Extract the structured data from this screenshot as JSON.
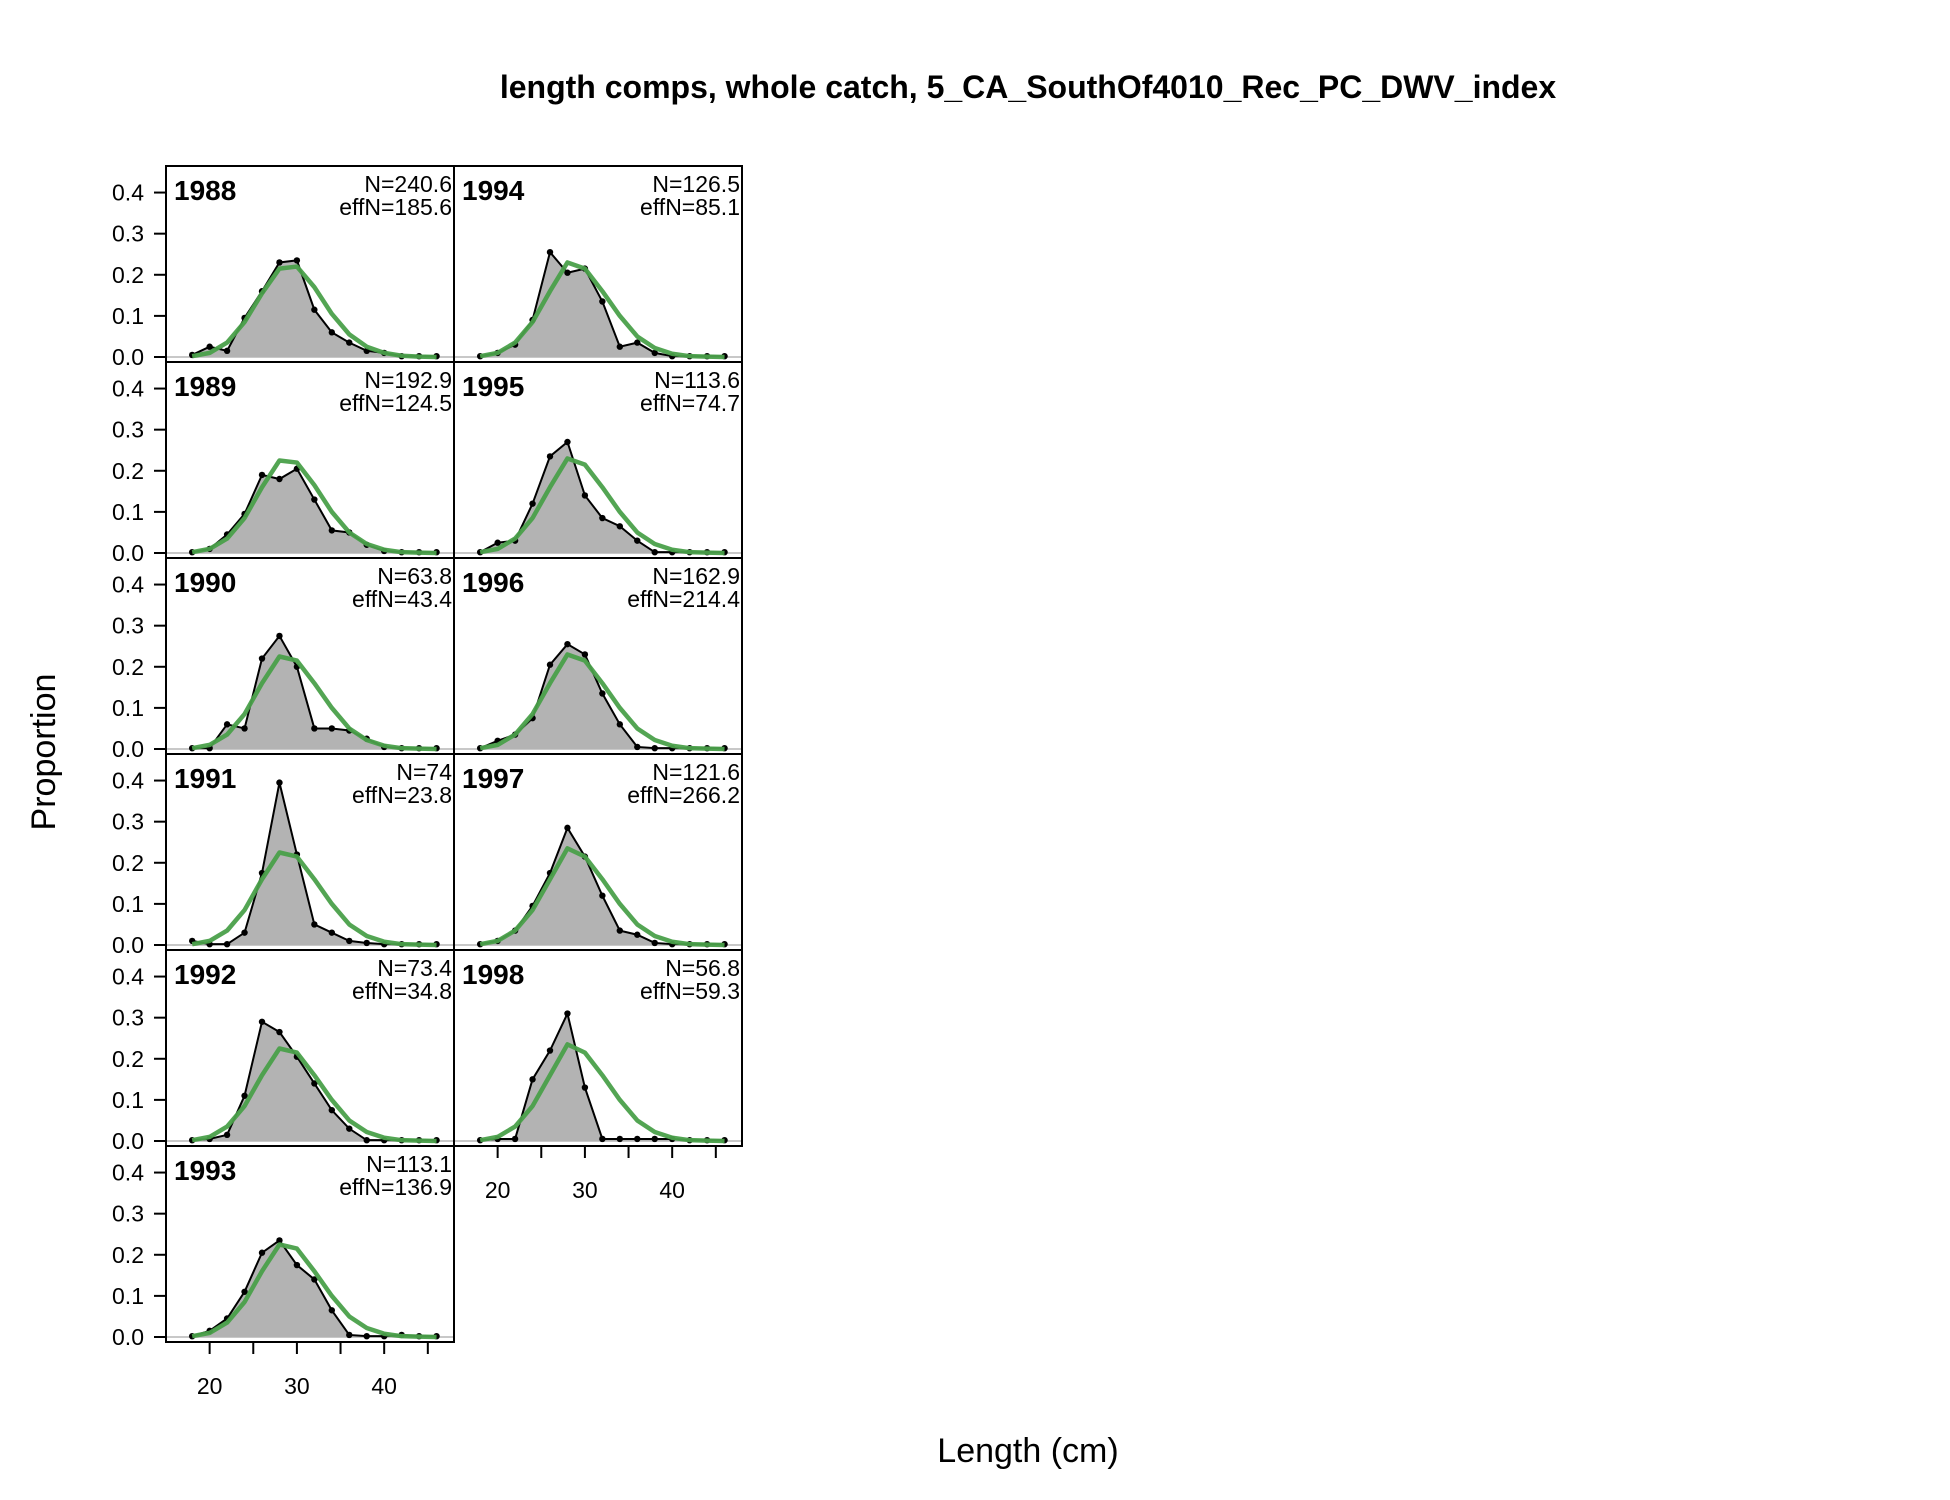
{
  "chart_data": {
    "type": "area",
    "title": "length comps, whole catch, 5_CA_SouthOf4010_Rec_PC_DWV_index",
    "xlabel": "Length (cm)",
    "ylabel": "Proportion",
    "xlim": [
      15,
      48
    ],
    "ylim": [
      0,
      0.45
    ],
    "x_ticks": [
      20,
      30,
      40
    ],
    "y_ticks": [
      "0.0",
      "0.1",
      "0.2",
      "0.3",
      "0.4"
    ],
    "legend": "none",
    "colors": {
      "observed_fill": "#b3b3b3",
      "observed_line": "#000000",
      "expected_line": "#4aa04a",
      "frame": "#000000"
    },
    "x": [
      18,
      20,
      22,
      24,
      26,
      28,
      30,
      32,
      34,
      36,
      38,
      40,
      42,
      44,
      46
    ],
    "panels": [
      {
        "year": "1988",
        "n_text": "N=240.6",
        "effn_text": "effN=185.6",
        "obs": [
          0.005,
          0.025,
          0.015,
          0.095,
          0.16,
          0.23,
          0.235,
          0.115,
          0.06,
          0.035,
          0.015,
          0.01,
          0.002,
          0.002,
          0.002
        ],
        "exp": [
          0.002,
          0.01,
          0.035,
          0.085,
          0.155,
          0.215,
          0.22,
          0.17,
          0.105,
          0.055,
          0.025,
          0.01,
          0.003,
          0.001,
          0.0
        ]
      },
      {
        "year": "1989",
        "n_text": "N=192.9",
        "effn_text": "effN=124.5",
        "obs": [
          0.002,
          0.01,
          0.045,
          0.095,
          0.19,
          0.18,
          0.205,
          0.13,
          0.055,
          0.05,
          0.02,
          0.005,
          0.002,
          0.002,
          0.002
        ],
        "exp": [
          0.002,
          0.01,
          0.035,
          0.085,
          0.16,
          0.225,
          0.22,
          0.165,
          0.1,
          0.05,
          0.022,
          0.008,
          0.002,
          0.001,
          0.0
        ]
      },
      {
        "year": "1990",
        "n_text": "N=63.8",
        "effn_text": "effN=43.4",
        "obs": [
          0.002,
          0.002,
          0.06,
          0.05,
          0.22,
          0.275,
          0.2,
          0.05,
          0.05,
          0.045,
          0.025,
          0.005,
          0.002,
          0.002,
          0.002
        ],
        "exp": [
          0.002,
          0.01,
          0.035,
          0.085,
          0.16,
          0.225,
          0.215,
          0.16,
          0.1,
          0.05,
          0.022,
          0.008,
          0.002,
          0.001,
          0.0
        ]
      },
      {
        "year": "1991",
        "n_text": "N=74",
        "effn_text": "effN=23.8",
        "obs": [
          0.01,
          0.002,
          0.002,
          0.03,
          0.175,
          0.395,
          0.22,
          0.05,
          0.03,
          0.01,
          0.005,
          0.002,
          0.002,
          0.002,
          0.002
        ],
        "exp": [
          0.002,
          0.01,
          0.035,
          0.085,
          0.16,
          0.225,
          0.215,
          0.16,
          0.1,
          0.05,
          0.022,
          0.008,
          0.002,
          0.001,
          0.0
        ]
      },
      {
        "year": "1992",
        "n_text": "N=73.4",
        "effn_text": "effN=34.8",
        "obs": [
          0.002,
          0.005,
          0.015,
          0.11,
          0.29,
          0.265,
          0.205,
          0.14,
          0.075,
          0.03,
          0.002,
          0.002,
          0.002,
          0.002,
          0.002
        ],
        "exp": [
          0.002,
          0.01,
          0.035,
          0.085,
          0.16,
          0.225,
          0.215,
          0.16,
          0.1,
          0.05,
          0.022,
          0.008,
          0.002,
          0.001,
          0.0
        ]
      },
      {
        "year": "1993",
        "n_text": "N=113.1",
        "effn_text": "effN=136.9",
        "obs": [
          0.002,
          0.015,
          0.045,
          0.11,
          0.205,
          0.235,
          0.175,
          0.14,
          0.065,
          0.005,
          0.002,
          0.002,
          0.005,
          0.002,
          0.002
        ],
        "exp": [
          0.002,
          0.01,
          0.035,
          0.085,
          0.16,
          0.225,
          0.215,
          0.16,
          0.1,
          0.05,
          0.022,
          0.008,
          0.002,
          0.001,
          0.0
        ]
      },
      {
        "year": "1994",
        "n_text": "N=126.5",
        "effn_text": "effN=85.1",
        "obs": [
          0.002,
          0.01,
          0.03,
          0.09,
          0.255,
          0.205,
          0.215,
          0.135,
          0.025,
          0.035,
          0.01,
          0.002,
          0.002,
          0.002,
          0.002
        ],
        "exp": [
          0.002,
          0.01,
          0.035,
          0.085,
          0.16,
          0.23,
          0.215,
          0.16,
          0.1,
          0.05,
          0.022,
          0.008,
          0.002,
          0.001,
          0.0
        ]
      },
      {
        "year": "1995",
        "n_text": "N=113.6",
        "effn_text": "effN=74.7",
        "obs": [
          0.002,
          0.025,
          0.03,
          0.12,
          0.235,
          0.27,
          0.14,
          0.085,
          0.065,
          0.03,
          0.002,
          0.002,
          0.002,
          0.002,
          0.002
        ],
        "exp": [
          0.002,
          0.01,
          0.035,
          0.085,
          0.16,
          0.23,
          0.215,
          0.16,
          0.1,
          0.05,
          0.022,
          0.008,
          0.002,
          0.001,
          0.0
        ]
      },
      {
        "year": "1996",
        "n_text": "N=162.9",
        "effn_text": "effN=214.4",
        "obs": [
          0.002,
          0.02,
          0.035,
          0.075,
          0.205,
          0.255,
          0.23,
          0.135,
          0.06,
          0.005,
          0.002,
          0.002,
          0.002,
          0.002,
          0.002
        ],
        "exp": [
          0.002,
          0.01,
          0.035,
          0.085,
          0.16,
          0.23,
          0.215,
          0.16,
          0.1,
          0.05,
          0.022,
          0.008,
          0.002,
          0.001,
          0.0
        ]
      },
      {
        "year": "1997",
        "n_text": "N=121.6",
        "effn_text": "effN=266.2",
        "obs": [
          0.002,
          0.01,
          0.035,
          0.095,
          0.175,
          0.285,
          0.215,
          0.12,
          0.035,
          0.025,
          0.005,
          0.002,
          0.002,
          0.002,
          0.002
        ],
        "exp": [
          0.002,
          0.01,
          0.035,
          0.085,
          0.16,
          0.235,
          0.215,
          0.16,
          0.1,
          0.05,
          0.022,
          0.008,
          0.002,
          0.001,
          0.0
        ]
      },
      {
        "year": "1998",
        "n_text": "N=56.8",
        "effn_text": "effN=59.3",
        "obs": [
          0.002,
          0.005,
          0.005,
          0.15,
          0.22,
          0.31,
          0.13,
          0.005,
          0.005,
          0.005,
          0.005,
          0.005,
          0.002,
          0.002,
          0.002
        ],
        "exp": [
          0.002,
          0.01,
          0.035,
          0.085,
          0.16,
          0.235,
          0.215,
          0.16,
          0.1,
          0.05,
          0.022,
          0.008,
          0.002,
          0.001,
          0.0
        ]
      }
    ]
  }
}
